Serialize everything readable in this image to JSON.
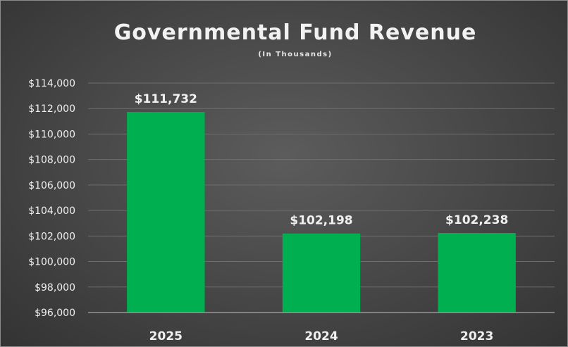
{
  "chart_data": {
    "type": "bar",
    "title": "Governmental Fund Revenue",
    "subtitle": "(In Thousands)",
    "categories": [
      "2025",
      "2024",
      "2023"
    ],
    "values": [
      111732,
      102198,
      102238
    ],
    "data_labels": [
      "$111,732",
      "$102,198",
      "$102,238"
    ],
    "y_ticks": [
      96000,
      98000,
      100000,
      102000,
      104000,
      106000,
      108000,
      110000,
      112000,
      114000
    ],
    "y_tick_labels": [
      "$96,000",
      "$98,000",
      "$100,000",
      "$102,000",
      "$104,000",
      "$106,000",
      "$108,000",
      "$110,000",
      "$112,000",
      "$114,000"
    ],
    "ylim": [
      96000,
      114000
    ],
    "grid": true,
    "legend": "none",
    "bar_color": "#00b050",
    "background_color": "#404040"
  }
}
